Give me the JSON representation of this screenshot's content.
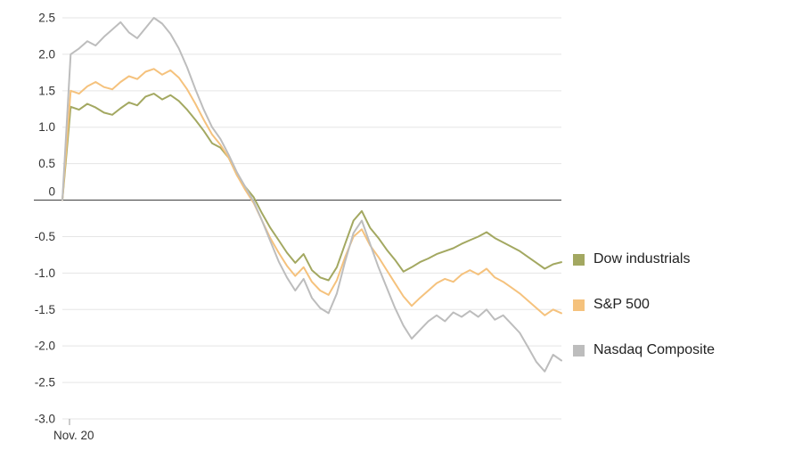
{
  "chart_data": {
    "type": "line",
    "title": "",
    "xlabel": "Nov. 20",
    "ylabel": "",
    "ylim": [
      -3.0,
      2.5
    ],
    "yticks": [
      2.5,
      2.0,
      1.5,
      1.0,
      0.5,
      0,
      -0.5,
      -1.0,
      -1.5,
      -2.0,
      -2.5,
      -3.0
    ],
    "grid": true,
    "legend_position": "right",
    "series": [
      {
        "name": "Dow industrials",
        "color": "#a3a861",
        "values": [
          0.0,
          1.28,
          1.24,
          1.32,
          1.27,
          1.2,
          1.17,
          1.26,
          1.34,
          1.3,
          1.42,
          1.46,
          1.38,
          1.44,
          1.36,
          1.24,
          1.1,
          0.95,
          0.78,
          0.72,
          0.58,
          0.34,
          0.18,
          0.04,
          -0.18,
          -0.38,
          -0.55,
          -0.72,
          -0.86,
          -0.74,
          -0.96,
          -1.06,
          -1.1,
          -0.92,
          -0.6,
          -0.28,
          -0.15,
          -0.38,
          -0.52,
          -0.68,
          -0.82,
          -0.98,
          -0.92,
          -0.85,
          -0.8,
          -0.74,
          -0.7,
          -0.66,
          -0.6,
          -0.55,
          -0.5,
          -0.44,
          -0.52,
          -0.58,
          -0.64,
          -0.7,
          -0.78,
          -0.86,
          -0.94,
          -0.88,
          -0.85
        ]
      },
      {
        "name": "S&P 500",
        "color": "#f5c27d",
        "values": [
          0.0,
          1.5,
          1.46,
          1.56,
          1.62,
          1.55,
          1.52,
          1.62,
          1.7,
          1.66,
          1.76,
          1.8,
          1.72,
          1.78,
          1.68,
          1.52,
          1.32,
          1.1,
          0.9,
          0.76,
          0.58,
          0.34,
          0.14,
          -0.04,
          -0.28,
          -0.52,
          -0.72,
          -0.9,
          -1.04,
          -0.92,
          -1.12,
          -1.24,
          -1.3,
          -1.1,
          -0.78,
          -0.5,
          -0.4,
          -0.62,
          -0.78,
          -0.96,
          -1.14,
          -1.32,
          -1.45,
          -1.34,
          -1.24,
          -1.14,
          -1.08,
          -1.12,
          -1.02,
          -0.96,
          -1.02,
          -0.94,
          -1.06,
          -1.12,
          -1.2,
          -1.28,
          -1.38,
          -1.48,
          -1.58,
          -1.5,
          -1.55
        ]
      },
      {
        "name": "Nasdaq Composite",
        "color": "#bdbdbd",
        "values": [
          0.0,
          2.0,
          2.08,
          2.18,
          2.12,
          2.24,
          2.34,
          2.44,
          2.3,
          2.22,
          2.36,
          2.5,
          2.42,
          2.28,
          2.08,
          1.82,
          1.52,
          1.24,
          1.0,
          0.84,
          0.62,
          0.38,
          0.18,
          -0.02,
          -0.28,
          -0.56,
          -0.84,
          -1.06,
          -1.24,
          -1.08,
          -1.34,
          -1.48,
          -1.55,
          -1.28,
          -0.84,
          -0.45,
          -0.28,
          -0.6,
          -0.92,
          -1.2,
          -1.48,
          -1.72,
          -1.9,
          -1.78,
          -1.66,
          -1.58,
          -1.66,
          -1.54,
          -1.6,
          -1.52,
          -1.6,
          -1.5,
          -1.64,
          -1.58,
          -1.7,
          -1.82,
          -2.02,
          -2.22,
          -2.35,
          -2.12,
          -2.2
        ]
      }
    ]
  },
  "axis": {
    "y_tick_labels": [
      "2.5",
      "2.0",
      "1.5",
      "1.0",
      "0.5",
      "0",
      "-0.5",
      "-1.0",
      "-1.5",
      "-2.0",
      "-2.5",
      "-3.0"
    ],
    "x_tick_label": "Nov. 20"
  },
  "legend": {
    "items": [
      {
        "label": "Dow industrials",
        "color": "#a3a861"
      },
      {
        "label": "S&P 500",
        "color": "#f5c27d"
      },
      {
        "label": "Nasdaq Composite",
        "color": "#bdbdbd"
      }
    ]
  },
  "colors": {
    "zero_line": "#3f3f3f",
    "gridline": "#e5e5e5",
    "tick_text": "#333333",
    "background": "#ffffff"
  }
}
